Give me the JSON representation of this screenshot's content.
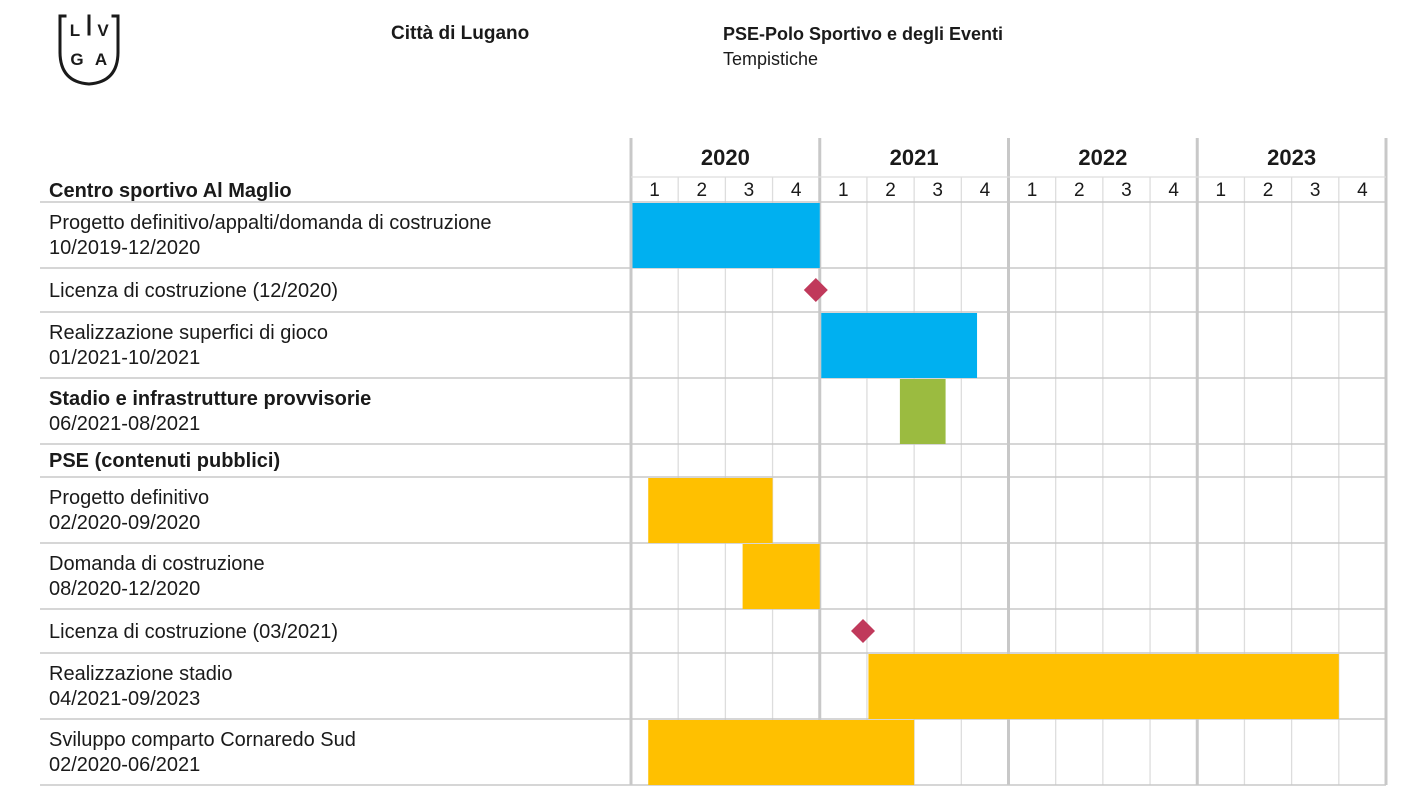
{
  "header": {
    "logo_letters": [
      "L",
      "V",
      "G",
      "A"
    ],
    "city": "Città di Lugano",
    "project_title": "PSE-Polo Sportivo e degli Eventi",
    "project_subtitle": "Tempistiche"
  },
  "chart_data": {
    "type": "gantt",
    "title": "",
    "years": [
      "2020",
      "2021",
      "2022",
      "2023"
    ],
    "quarter_labels": [
      "1",
      "2",
      "3",
      "4"
    ],
    "timeline_start": "2020-01",
    "timeline_end": "2023-12",
    "colors": {
      "blue": "#00B0F0",
      "green": "#9BBB40",
      "yellow": "#FFC000",
      "milestone": "#C0395B",
      "grid_major": "#c8c8c8",
      "grid_minor": "#dddddd"
    },
    "rows": [
      {
        "label": "Centro sportivo Al Maglio",
        "bold": true,
        "kind": "section"
      },
      {
        "label": "Progetto definitivo/appalti/domanda di costruzione",
        "dates": "10/2019-12/2020",
        "kind": "bar",
        "start": "2020-01",
        "end": "2020-12",
        "color": "blue"
      },
      {
        "label": "Licenza di costruzione (12/2020)",
        "kind": "milestone",
        "date": "2020-12",
        "color": "milestone"
      },
      {
        "label": "Realizzazione superfici di gioco",
        "dates": "01/2021-10/2021",
        "kind": "bar",
        "start": "2021-01",
        "end": "2021-10",
        "color": "blue"
      },
      {
        "label": "Stadio e infrastrutture provvisorie",
        "bold": true,
        "dates": "06/2021-08/2021",
        "kind": "bar",
        "start": "2021-06",
        "end": "2021-08",
        "color": "green"
      },
      {
        "label": "PSE (contenuti pubblici)",
        "bold": true,
        "kind": "section"
      },
      {
        "label": "Progetto definitivo",
        "dates": "02/2020-09/2020",
        "kind": "bar",
        "start": "2020-02",
        "end": "2020-09",
        "color": "yellow"
      },
      {
        "label": "Domanda di costruzione",
        "dates": "08/2020-12/2020",
        "kind": "bar",
        "start": "2020-08",
        "end": "2020-12",
        "color": "yellow"
      },
      {
        "label": "Licenza di costruzione (03/2021)",
        "kind": "milestone",
        "date": "2021-03",
        "color": "milestone"
      },
      {
        "label": "Realizzazione stadio",
        "dates": "04/2021-09/2023",
        "kind": "bar",
        "start": "2021-04",
        "end": "2023-09",
        "color": "yellow"
      },
      {
        "label": "Sviluppo comparto Cornaredo Sud",
        "dates": "02/2020-06/2021",
        "kind": "bar",
        "start": "2020-02",
        "end": "2021-06",
        "color": "yellow"
      }
    ]
  }
}
